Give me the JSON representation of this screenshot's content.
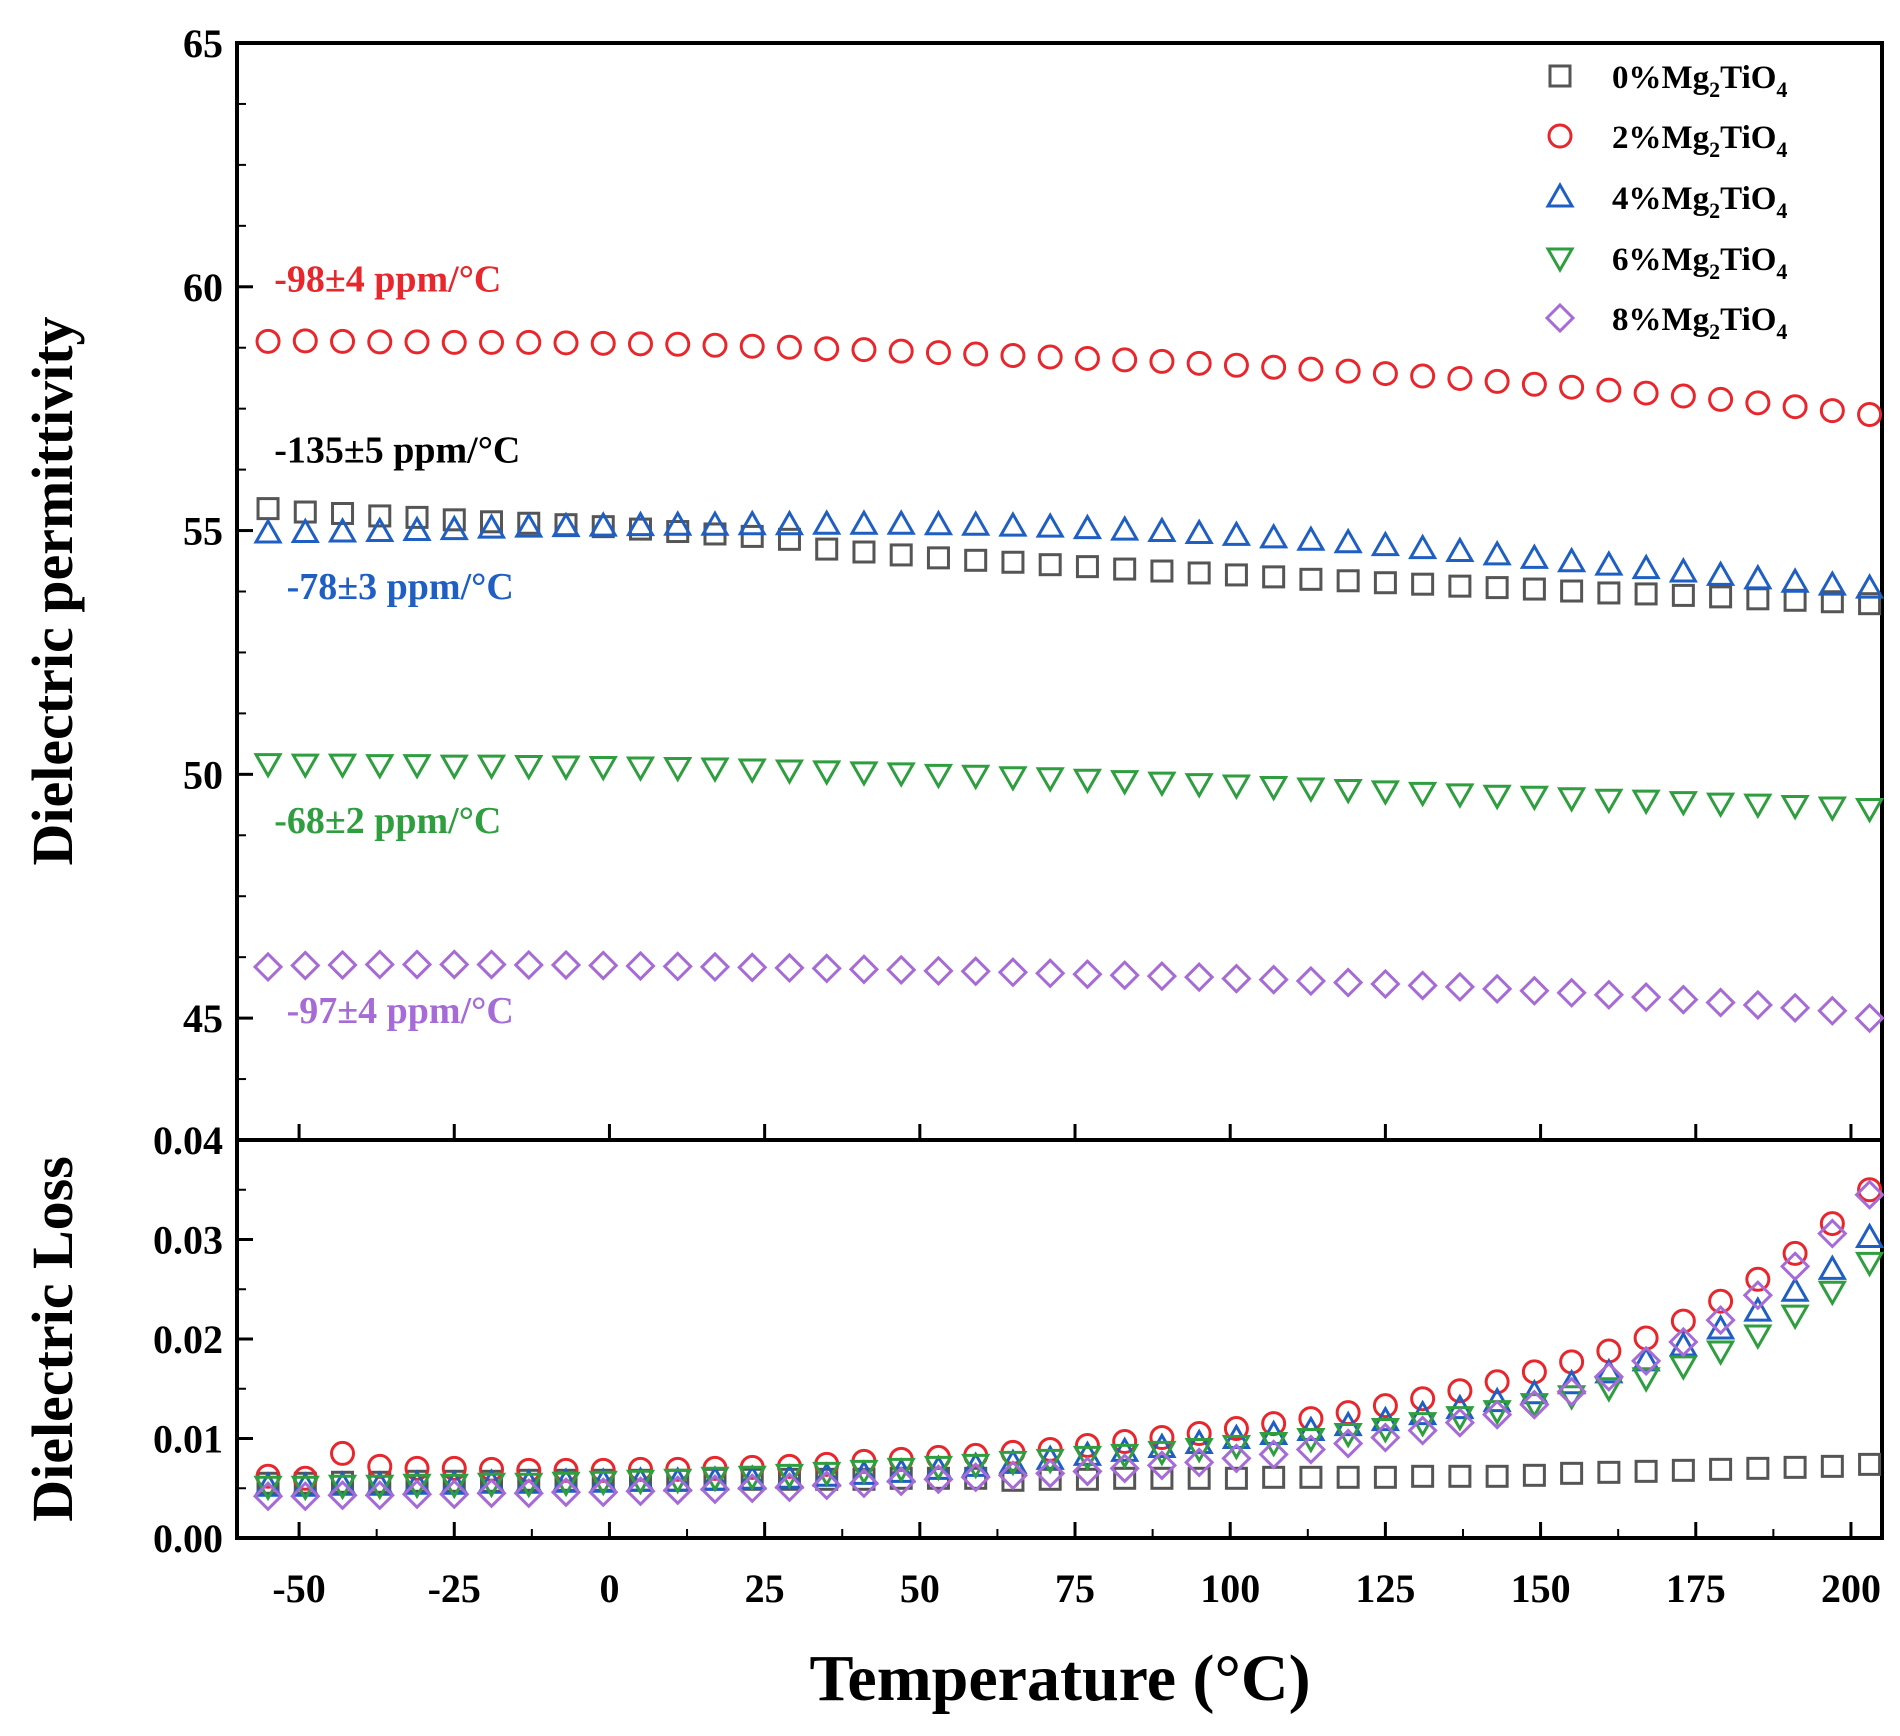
{
  "chart_data": {
    "type": "scatter",
    "xlabel": "Temperature (°C)",
    "xlim": [
      -60,
      205
    ],
    "xticks": [
      "-50",
      "-25",
      "0",
      "25",
      "50",
      "75",
      "100",
      "125",
      "150",
      "175",
      "200"
    ],
    "x": [
      -55,
      -49,
      -43,
      -37,
      -31,
      -25,
      -19,
      -13,
      -7,
      -1,
      5,
      11,
      17,
      23,
      29,
      35,
      41,
      47,
      53,
      59,
      65,
      71,
      77,
      83,
      89,
      95,
      101,
      107,
      113,
      119,
      125,
      131,
      137,
      143,
      149,
      155,
      161,
      167,
      173,
      179,
      185,
      191,
      197,
      203
    ],
    "series": [
      {
        "name": "0%Mg2TiO4",
        "label_main": "0%Mg",
        "label_sub1": "2",
        "label_mid": "TiO",
        "label_sub2": "4",
        "marker": "square",
        "color": "#555555",
        "permittivity": [
          55.45,
          55.38,
          55.35,
          55.3,
          55.27,
          55.22,
          55.18,
          55.15,
          55.12,
          55.08,
          55.03,
          54.98,
          54.93,
          54.88,
          54.82,
          54.62,
          54.56,
          54.5,
          54.44,
          54.39,
          54.35,
          54.3,
          54.26,
          54.21,
          54.17,
          54.13,
          54.09,
          54.05,
          54.0,
          53.97,
          53.93,
          53.9,
          53.86,
          53.83,
          53.8,
          53.76,
          53.72,
          53.7,
          53.67,
          53.64,
          53.6,
          53.57,
          53.54,
          53.5
        ],
        "loss": [
          0.0055,
          0.0055,
          0.0056,
          0.0056,
          0.0057,
          0.0057,
          0.0057,
          0.0058,
          0.0058,
          0.0058,
          0.0058,
          0.0058,
          0.0059,
          0.0059,
          0.0059,
          0.0059,
          0.0059,
          0.006,
          0.006,
          0.006,
          0.0058,
          0.0059,
          0.0059,
          0.006,
          0.006,
          0.006,
          0.006,
          0.0061,
          0.0061,
          0.0061,
          0.0061,
          0.0062,
          0.0062,
          0.0062,
          0.0063,
          0.0065,
          0.0066,
          0.0067,
          0.0068,
          0.0069,
          0.007,
          0.0071,
          0.0072,
          0.0074
        ]
      },
      {
        "name": "2%Mg2TiO4",
        "label_main": "2%Mg",
        "label_sub1": "2",
        "label_mid": "TiO",
        "label_sub2": "4",
        "marker": "circle",
        "color": "#e8262b",
        "permittivity": [
          58.88,
          58.89,
          58.88,
          58.87,
          58.87,
          58.86,
          58.86,
          58.86,
          58.85,
          58.84,
          58.83,
          58.82,
          58.8,
          58.78,
          58.76,
          58.73,
          58.71,
          58.68,
          58.65,
          58.62,
          58.59,
          58.56,
          58.53,
          58.5,
          58.47,
          58.43,
          58.39,
          58.35,
          58.31,
          58.27,
          58.22,
          58.17,
          58.12,
          58.06,
          58.0,
          57.94,
          57.88,
          57.82,
          57.76,
          57.69,
          57.62,
          57.54,
          57.46,
          57.38
        ],
        "loss": [
          0.0062,
          0.006,
          0.0085,
          0.0072,
          0.007,
          0.007,
          0.0069,
          0.0068,
          0.0068,
          0.0068,
          0.0069,
          0.0069,
          0.007,
          0.0071,
          0.0072,
          0.0074,
          0.0077,
          0.0079,
          0.0081,
          0.0083,
          0.0086,
          0.0089,
          0.0093,
          0.0097,
          0.0101,
          0.0105,
          0.011,
          0.0115,
          0.012,
          0.0126,
          0.0133,
          0.014,
          0.0148,
          0.0157,
          0.0167,
          0.0177,
          0.0188,
          0.0201,
          0.0218,
          0.0238,
          0.026,
          0.0286,
          0.0316,
          0.035
        ]
      },
      {
        "name": "4%Mg2TiO4",
        "label_main": "4%Mg",
        "label_sub1": "2",
        "label_mid": "TiO",
        "label_sub2": "4",
        "marker": "triangle-up",
        "color": "#1f5fc4",
        "permittivity": [
          54.95,
          54.96,
          54.97,
          54.98,
          55.0,
          55.02,
          55.05,
          55.07,
          55.08,
          55.09,
          55.1,
          55.11,
          55.11,
          55.12,
          55.12,
          55.13,
          55.13,
          55.13,
          55.12,
          55.11,
          55.09,
          55.07,
          55.04,
          55.01,
          54.98,
          54.94,
          54.9,
          54.85,
          54.8,
          54.75,
          54.69,
          54.63,
          54.57,
          54.5,
          54.43,
          54.36,
          54.29,
          54.22,
          54.15,
          54.08,
          54.01,
          53.94,
          53.88,
          53.82
        ],
        "loss": [
          0.0052,
          0.0052,
          0.0053,
          0.0053,
          0.0054,
          0.0054,
          0.0055,
          0.0055,
          0.0056,
          0.0056,
          0.0057,
          0.0057,
          0.0058,
          0.0059,
          0.006,
          0.0062,
          0.0064,
          0.0066,
          0.0069,
          0.0072,
          0.0075,
          0.0079,
          0.0083,
          0.0087,
          0.0091,
          0.0095,
          0.01,
          0.0104,
          0.0108,
          0.0113,
          0.0118,
          0.0124,
          0.013,
          0.0137,
          0.0145,
          0.0155,
          0.0166,
          0.0178,
          0.0193,
          0.021,
          0.0228,
          0.0248,
          0.027,
          0.0302
        ]
      },
      {
        "name": "6%Mg2TiO4",
        "label_main": "6%Mg",
        "label_sub1": "2",
        "label_mid": "TiO",
        "label_sub2": "4",
        "marker": "triangle-down",
        "color": "#2e9e3e",
        "permittivity": [
          50.22,
          50.21,
          50.21,
          50.2,
          50.2,
          50.19,
          50.19,
          50.18,
          50.17,
          50.16,
          50.15,
          50.14,
          50.13,
          50.11,
          50.09,
          50.07,
          50.05,
          50.03,
          50.0,
          49.98,
          49.95,
          49.93,
          49.9,
          49.87,
          49.84,
          49.81,
          49.78,
          49.75,
          49.72,
          49.69,
          49.66,
          49.63,
          49.6,
          49.57,
          49.55,
          49.52,
          49.49,
          49.47,
          49.44,
          49.41,
          49.39,
          49.36,
          49.33,
          49.3
        ],
        "loss": [
          0.0052,
          0.0052,
          0.0053,
          0.0053,
          0.0054,
          0.0054,
          0.0055,
          0.0055,
          0.0056,
          0.0057,
          0.0058,
          0.0059,
          0.0061,
          0.0062,
          0.0064,
          0.0066,
          0.0068,
          0.007,
          0.0072,
          0.0074,
          0.0077,
          0.0079,
          0.0082,
          0.0084,
          0.0087,
          0.009,
          0.0093,
          0.0096,
          0.01,
          0.0105,
          0.011,
          0.0116,
          0.0122,
          0.0128,
          0.0135,
          0.0143,
          0.0151,
          0.0161,
          0.0173,
          0.0188,
          0.0204,
          0.0224,
          0.0248,
          0.0277
        ]
      },
      {
        "name": "8%Mg2TiO4",
        "label_main": "8%Mg",
        "label_sub1": "2",
        "label_mid": "TiO",
        "label_sub2": "4",
        "marker": "diamond",
        "color": "#a66bd6",
        "permittivity": [
          46.05,
          46.08,
          46.09,
          46.1,
          46.1,
          46.1,
          46.1,
          46.09,
          46.09,
          46.08,
          46.07,
          46.06,
          46.05,
          46.04,
          46.03,
          46.02,
          46.0,
          45.99,
          45.97,
          45.96,
          45.94,
          45.92,
          45.9,
          45.88,
          45.86,
          45.84,
          45.81,
          45.79,
          45.76,
          45.73,
          45.7,
          45.67,
          45.64,
          45.6,
          45.56,
          45.52,
          45.48,
          45.43,
          45.38,
          45.32,
          45.27,
          45.21,
          45.15,
          45.0
        ],
        "loss": [
          0.0042,
          0.0042,
          0.0043,
          0.0043,
          0.0044,
          0.0044,
          0.0045,
          0.0045,
          0.0046,
          0.0046,
          0.0047,
          0.0048,
          0.0049,
          0.005,
          0.0051,
          0.0053,
          0.0055,
          0.0057,
          0.0059,
          0.0061,
          0.0063,
          0.0065,
          0.0067,
          0.007,
          0.0073,
          0.0076,
          0.008,
          0.0084,
          0.0089,
          0.0095,
          0.0101,
          0.0108,
          0.0116,
          0.0124,
          0.0134,
          0.0147,
          0.0162,
          0.0178,
          0.0197,
          0.0219,
          0.0244,
          0.0273,
          0.0306,
          0.0345
        ]
      }
    ],
    "top_panel": {
      "ylabel": "Dielectric permittivity",
      "ylim": [
        42.5,
        65
      ],
      "yticks": [
        45,
        50,
        55,
        60,
        65
      ],
      "annotations": [
        {
          "text": "-98±4 ppm/°C",
          "color": "#e8262b",
          "x": -54,
          "y": 59.9
        },
        {
          "text": "-135±5 ppm/°C",
          "color": "#000000",
          "x": -54,
          "y": 56.4
        },
        {
          "text": "-78±3 ppm/°C",
          "color": "#1f5fc4",
          "x": -52,
          "y": 53.6
        },
        {
          "text": "-68±2 ppm/°C",
          "color": "#2e9e3e",
          "x": -54,
          "y": 48.8
        },
        {
          "text": "-97±4 ppm/°C",
          "color": "#a66bd6",
          "x": -52,
          "y": 44.9
        }
      ]
    },
    "bottom_panel": {
      "ylabel": "Dielectric Loss",
      "ylim": [
        0,
        0.04
      ],
      "yticks": [
        "0.00",
        "0.01",
        "0.02",
        "0.03",
        "0.04"
      ]
    }
  }
}
